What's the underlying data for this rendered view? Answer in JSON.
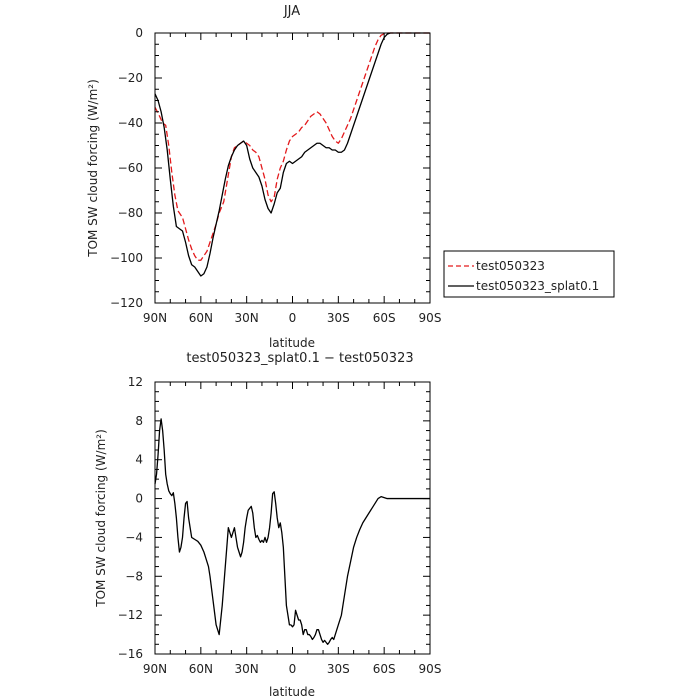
{
  "chart_data": [
    {
      "type": "line",
      "title": "JJA",
      "xlabel": "latitude",
      "ylabel": "TOM SW cloud forcing (W/m²)",
      "xlim": [
        -90,
        90
      ],
      "ylim": [
        -120,
        0
      ],
      "xtick_values": [
        -90,
        -60,
        -30,
        0,
        30,
        60,
        90
      ],
      "xtick_labels": [
        "90N",
        "60N",
        "30N",
        "0",
        "30S",
        "60S",
        "90S"
      ],
      "ytick_values": [
        0,
        -20,
        -40,
        -60,
        -80,
        -100,
        -120
      ],
      "ytick_labels": [
        "0",
        "−20",
        "−40",
        "−60",
        "−80",
        "−100",
        "−120"
      ],
      "legend_position": "right",
      "series": [
        {
          "name": "test050323",
          "color": "#e31a1c",
          "dash": "dashed",
          "x": [
            -90,
            -87,
            -85,
            -83,
            -81,
            -79,
            -77,
            -75,
            -72,
            -70,
            -68,
            -66,
            -64,
            -62,
            -60,
            -58,
            -56,
            -54,
            -52,
            -50,
            -48,
            -45,
            -42,
            -40,
            -38,
            -36,
            -34,
            -32,
            -30,
            -28,
            -26,
            -24,
            -22,
            -20,
            -18,
            -16,
            -14,
            -12,
            -10,
            -8,
            -6,
            -4,
            -2,
            0,
            2,
            4,
            6,
            8,
            10,
            12,
            14,
            16,
            18,
            20,
            22,
            24,
            26,
            28,
            30,
            32,
            34,
            36,
            38,
            40,
            42,
            44,
            46,
            48,
            50,
            52,
            54,
            56,
            58,
            60,
            62,
            64,
            66,
            68,
            70,
            72,
            75,
            80,
            85,
            90
          ],
          "y": [
            -33,
            -37,
            -40,
            -41,
            -50,
            -62,
            -72,
            -79,
            -82,
            -87,
            -92,
            -96,
            -99,
            -101,
            -101,
            -99,
            -97,
            -93,
            -89,
            -85,
            -80,
            -75,
            -63,
            -55,
            -51,
            -50,
            -49,
            -48,
            -49,
            -50,
            -52,
            -53,
            -55,
            -60,
            -65,
            -72,
            -75,
            -73,
            -65,
            -60,
            -57,
            -52,
            -48,
            -46,
            -45,
            -44,
            -42,
            -41,
            -39,
            -37,
            -36,
            -35,
            -36,
            -38,
            -40,
            -43,
            -46,
            -48,
            -49,
            -47,
            -44,
            -41,
            -38,
            -34,
            -30,
            -26,
            -22,
            -18,
            -14,
            -10,
            -6,
            -3,
            -1,
            -0.3,
            0,
            0,
            0,
            0,
            0,
            0,
            0,
            0,
            0,
            0
          ]
        },
        {
          "name": "test050323_splat0.1",
          "color": "#000000",
          "dash": "solid",
          "x": [
            -90,
            -88,
            -86,
            -84,
            -82,
            -80,
            -78,
            -76,
            -74,
            -72,
            -70,
            -68,
            -66,
            -64,
            -62,
            -60,
            -58,
            -56,
            -54,
            -52,
            -50,
            -48,
            -46,
            -44,
            -42,
            -40,
            -38,
            -36,
            -34,
            -32,
            -30,
            -28,
            -26,
            -24,
            -22,
            -20,
            -18,
            -16,
            -14,
            -12,
            -10,
            -8,
            -6,
            -4,
            -2,
            0,
            2,
            4,
            6,
            8,
            10,
            12,
            14,
            16,
            18,
            20,
            22,
            24,
            26,
            28,
            30,
            32,
            34,
            36,
            38,
            40,
            42,
            44,
            46,
            48,
            50,
            52,
            54,
            56,
            58,
            60,
            62,
            64,
            66,
            68,
            70,
            72,
            75,
            80,
            85,
            90
          ],
          "y": [
            -27,
            -30,
            -35,
            -42,
            -52,
            -65,
            -77,
            -86,
            -87,
            -88,
            -93,
            -99,
            -103,
            -104,
            -106,
            -108,
            -107,
            -104,
            -98,
            -91,
            -85,
            -79,
            -72,
            -65,
            -59,
            -55,
            -52,
            -50,
            -49,
            -48,
            -50,
            -56,
            -60,
            -62,
            -64,
            -68,
            -74,
            -78,
            -80,
            -76,
            -71,
            -69,
            -62,
            -58,
            -57,
            -58,
            -57,
            -56,
            -55,
            -53,
            -52,
            -51,
            -50,
            -49,
            -49,
            -50,
            -51,
            -51,
            -52,
            -52,
            -53,
            -53,
            -52,
            -49,
            -45,
            -41,
            -37,
            -33,
            -29,
            -25,
            -21,
            -17,
            -13,
            -9,
            -5,
            -2,
            -0.5,
            0,
            0,
            0,
            0,
            0,
            0,
            0,
            0,
            0
          ]
        }
      ]
    },
    {
      "type": "line",
      "title": "test050323_splat0.1 − test050323",
      "xlabel": "latitude",
      "ylabel": "TOM SW cloud forcing (W/m²)",
      "xlim": [
        -90,
        90
      ],
      "ylim": [
        -16,
        12
      ],
      "xtick_values": [
        -90,
        -60,
        -30,
        0,
        30,
        60,
        90
      ],
      "xtick_labels": [
        "90N",
        "60N",
        "30N",
        "0",
        "30S",
        "60S",
        "90S"
      ],
      "ytick_values": [
        12,
        8,
        4,
        0,
        -4,
        -8,
        -12,
        -16
      ],
      "ytick_labels": [
        "12",
        "8",
        "4",
        "0",
        "−4",
        "−8",
        "−12",
        "−16"
      ],
      "series": [
        {
          "name": "",
          "color": "#000000",
          "dash": "solid",
          "x": [
            -90,
            -89,
            -88,
            -87,
            -86,
            -85,
            -84,
            -83,
            -82,
            -81,
            -80,
            -79,
            -78,
            -77,
            -76,
            -75,
            -74,
            -73,
            -72,
            -71,
            -70,
            -69,
            -68,
            -66,
            -64,
            -62,
            -60,
            -58,
            -57,
            -56,
            -55,
            -54,
            -52,
            -50,
            -48,
            -46,
            -45,
            -44,
            -43,
            -42,
            -41,
            -40,
            -39,
            -38,
            -37,
            -36,
            -35,
            -34,
            -33,
            -32,
            -31,
            -30,
            -29,
            -28,
            -27,
            -26,
            -25,
            -24,
            -23,
            -22,
            -21,
            -20,
            -19,
            -18,
            -17,
            -16,
            -15,
            -14,
            -13,
            -12,
            -11,
            -10,
            -9,
            -8,
            -7,
            -6,
            -5,
            -4,
            -3,
            -2,
            -1,
            0,
            1,
            2,
            3,
            4,
            5,
            6,
            7,
            8,
            9,
            10,
            11,
            12,
            13,
            14,
            15,
            16,
            17,
            18,
            19,
            20,
            21,
            22,
            23,
            24,
            25,
            26,
            27,
            28,
            30,
            32,
            34,
            36,
            38,
            40,
            42,
            44,
            46,
            48,
            50,
            52,
            54,
            56,
            58,
            60,
            62,
            65,
            70,
            75,
            80,
            85,
            90
          ],
          "y": [
            1.5,
            2.5,
            4.5,
            7.0,
            8.2,
            7.0,
            5.0,
            2.5,
            1.5,
            0.8,
            0.5,
            0.3,
            0.6,
            -0.5,
            -2.0,
            -4.0,
            -5.5,
            -5.0,
            -4.0,
            -2.0,
            -0.5,
            -0.3,
            -2.0,
            -4.0,
            -4.2,
            -4.4,
            -4.8,
            -5.5,
            -6.0,
            -6.5,
            -7.0,
            -8.0,
            -10.5,
            -13.0,
            -14.0,
            -11.0,
            -9.0,
            -7.0,
            -5.0,
            -3.0,
            -3.5,
            -4.0,
            -3.5,
            -3.0,
            -4.0,
            -5.0,
            -5.5,
            -6.0,
            -5.5,
            -4.5,
            -3.0,
            -2.0,
            -1.2,
            -1.0,
            -0.8,
            -1.5,
            -3.0,
            -4.0,
            -3.8,
            -4.2,
            -4.5,
            -4.3,
            -4.5,
            -4.0,
            -4.5,
            -4.0,
            -3.0,
            -1.5,
            0.5,
            0.7,
            -0.5,
            -2.0,
            -3.0,
            -2.5,
            -3.5,
            -5.0,
            -8.0,
            -11.0,
            -12.0,
            -13.0,
            -13.0,
            -13.2,
            -13.0,
            -11.5,
            -12.0,
            -12.5,
            -12.5,
            -13.0,
            -14.0,
            -13.5,
            -13.5,
            -14.0,
            -14.0,
            -14.2,
            -14.5,
            -14.3,
            -14.0,
            -13.5,
            -13.5,
            -14.0,
            -14.5,
            -14.8,
            -14.6,
            -14.8,
            -15.0,
            -14.8,
            -14.5,
            -14.3,
            -14.5,
            -14.0,
            -13.0,
            -12.0,
            -10.0,
            -8.0,
            -6.5,
            -5.0,
            -4.0,
            -3.2,
            -2.5,
            -2.0,
            -1.5,
            -1.0,
            -0.5,
            0.0,
            0.2,
            0.1,
            0.0,
            0.0,
            0.0,
            0.0,
            0.0,
            0.0,
            0.0
          ]
        }
      ]
    }
  ]
}
